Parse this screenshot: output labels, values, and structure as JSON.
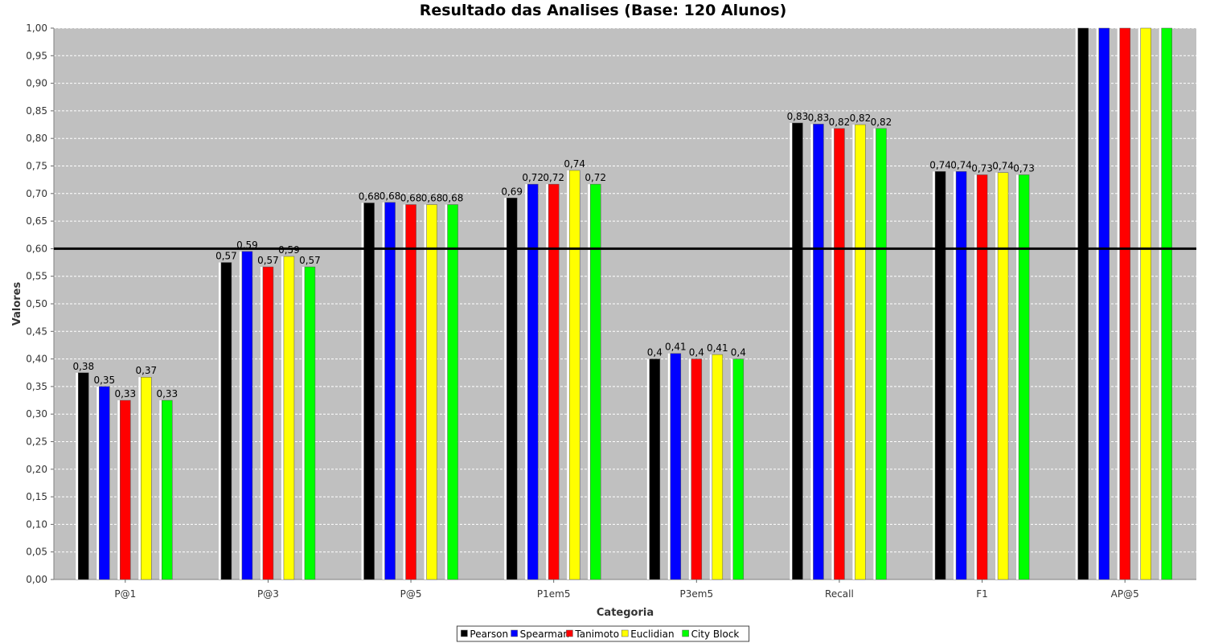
{
  "chart_data": {
    "type": "bar",
    "title": "Resultado das Analises (Base: 120 Alunos)",
    "xlabel": "Categoria",
    "ylabel": "Valores",
    "ylim": [
      0,
      1
    ],
    "ytick_step": 0.05,
    "ytick_labels": [
      "0,00",
      "0,05",
      "0,10",
      "0,15",
      "0,20",
      "0,25",
      "0,30",
      "0,35",
      "0,40",
      "0,45",
      "0,50",
      "0,55",
      "0,60",
      "0,65",
      "0,70",
      "0,75",
      "0,80",
      "0,85",
      "0,90",
      "0,95",
      "1,00"
    ],
    "grid": true,
    "legend_position": "bottom-center",
    "reference_line": {
      "value": 0.6,
      "color": "#000000"
    },
    "plot_background": "#c0c0c0",
    "categories": [
      "P@1",
      "P@3",
      "P@5",
      "P1em5",
      "P3em5",
      "Recall",
      "F1",
      "AP@5"
    ],
    "series": [
      {
        "name": "Pearson",
        "color": "#000000",
        "values": [
          0.375,
          0.575,
          0.683,
          0.692,
          0.4,
          0.828,
          0.74,
          1.0
        ],
        "labels": [
          "0,38",
          "0,57",
          "0,68",
          "0,69",
          "0,4",
          "0,83",
          "0,74",
          ""
        ]
      },
      {
        "name": "Spearman",
        "color": "#0000ff",
        "values": [
          0.35,
          0.595,
          0.684,
          0.717,
          0.41,
          0.826,
          0.74,
          1.0
        ],
        "labels": [
          "0,35",
          "0,59",
          "0,68",
          "0,72",
          "0,41",
          "0,83",
          "0,74",
          ""
        ]
      },
      {
        "name": "Tanimoto",
        "color": "#ff0000",
        "values": [
          0.325,
          0.567,
          0.68,
          0.717,
          0.4,
          0.818,
          0.734,
          1.0
        ],
        "labels": [
          "0,33",
          "0,57",
          "0,68",
          "0,72",
          "0,4",
          "0,82",
          "0,73",
          ""
        ]
      },
      {
        "name": "Euclidian",
        "color": "#ffff00",
        "values": [
          0.367,
          0.586,
          0.68,
          0.742,
          0.408,
          0.825,
          0.738,
          1.0
        ],
        "labels": [
          "0,37",
          "0,59",
          "0,68",
          "0,74",
          "0,41",
          "0,82",
          "0,74",
          ""
        ]
      },
      {
        "name": "City Block",
        "color": "#00ff00",
        "values": [
          0.325,
          0.567,
          0.68,
          0.717,
          0.4,
          0.818,
          0.734,
          1.0
        ],
        "labels": [
          "0,33",
          "0,57",
          "0,68",
          "0,72",
          "0,4",
          "0,82",
          "0,73",
          ""
        ]
      }
    ]
  }
}
